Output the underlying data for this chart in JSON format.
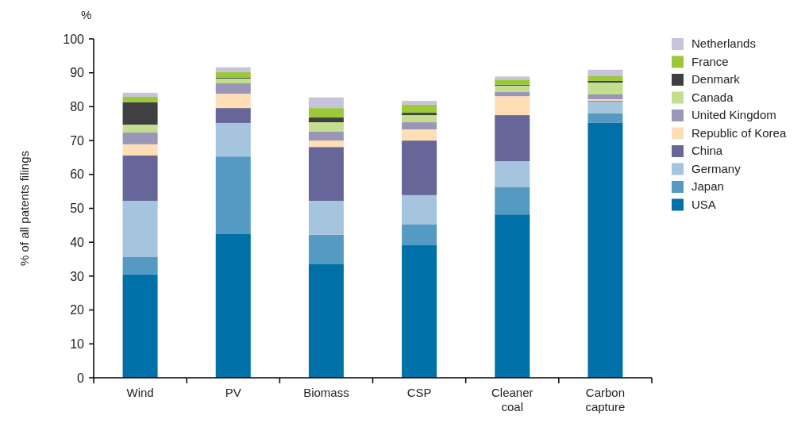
{
  "chart_data": {
    "type": "bar",
    "stacked": true,
    "ylabel": "% of all patents filings",
    "annotations": [
      "%"
    ],
    "categories": [
      "Wind",
      "PV",
      "Biomass",
      "CSP",
      "Cleaner coal",
      "Carbon capture"
    ],
    "ylim": [
      0,
      100
    ],
    "yticks": [
      0,
      10,
      20,
      30,
      40,
      50,
      60,
      70,
      80,
      90,
      100
    ],
    "grid": false,
    "legend": "right",
    "series": [
      {
        "name": "USA",
        "color": "#0070a8",
        "values": [
          30.5,
          42.4,
          33.5,
          39.1,
          48.2,
          75.2
        ]
      },
      {
        "name": "Japan",
        "color": "#559ac3",
        "values": [
          5.1,
          22.9,
          8.7,
          6.1,
          8.0,
          2.8
        ]
      },
      {
        "name": "Germany",
        "color": "#a5c4dd",
        "values": [
          16.6,
          9.9,
          10.0,
          8.7,
          7.7,
          3.5
        ]
      },
      {
        "name": "China",
        "color": "#666699",
        "values": [
          13.4,
          4.4,
          15.9,
          16.1,
          13.6,
          0.2
        ]
      },
      {
        "name": "Republic of Korea",
        "color": "#ffdeb5",
        "values": [
          3.3,
          4.2,
          1.9,
          3.3,
          5.6,
          0.5
        ]
      },
      {
        "name": "United Kingdom",
        "color": "#9a96b8",
        "values": [
          3.5,
          3.1,
          2.6,
          2.1,
          1.2,
          1.4
        ]
      },
      {
        "name": "Canada",
        "color": "#c3de8e",
        "values": [
          2.3,
          1.4,
          2.8,
          2.1,
          1.9,
          3.5
        ]
      },
      {
        "name": "Denmark",
        "color": "#404042",
        "values": [
          6.6,
          0.3,
          1.4,
          0.7,
          0.3,
          0.5
        ]
      },
      {
        "name": "France",
        "color": "#9bc93a",
        "values": [
          1.6,
          1.6,
          2.8,
          2.4,
          1.5,
          1.4
        ]
      },
      {
        "name": "Netherlands",
        "color": "#c6c3da",
        "values": [
          1.2,
          1.4,
          3.1,
          1.1,
          0.9,
          1.9
        ]
      }
    ]
  }
}
